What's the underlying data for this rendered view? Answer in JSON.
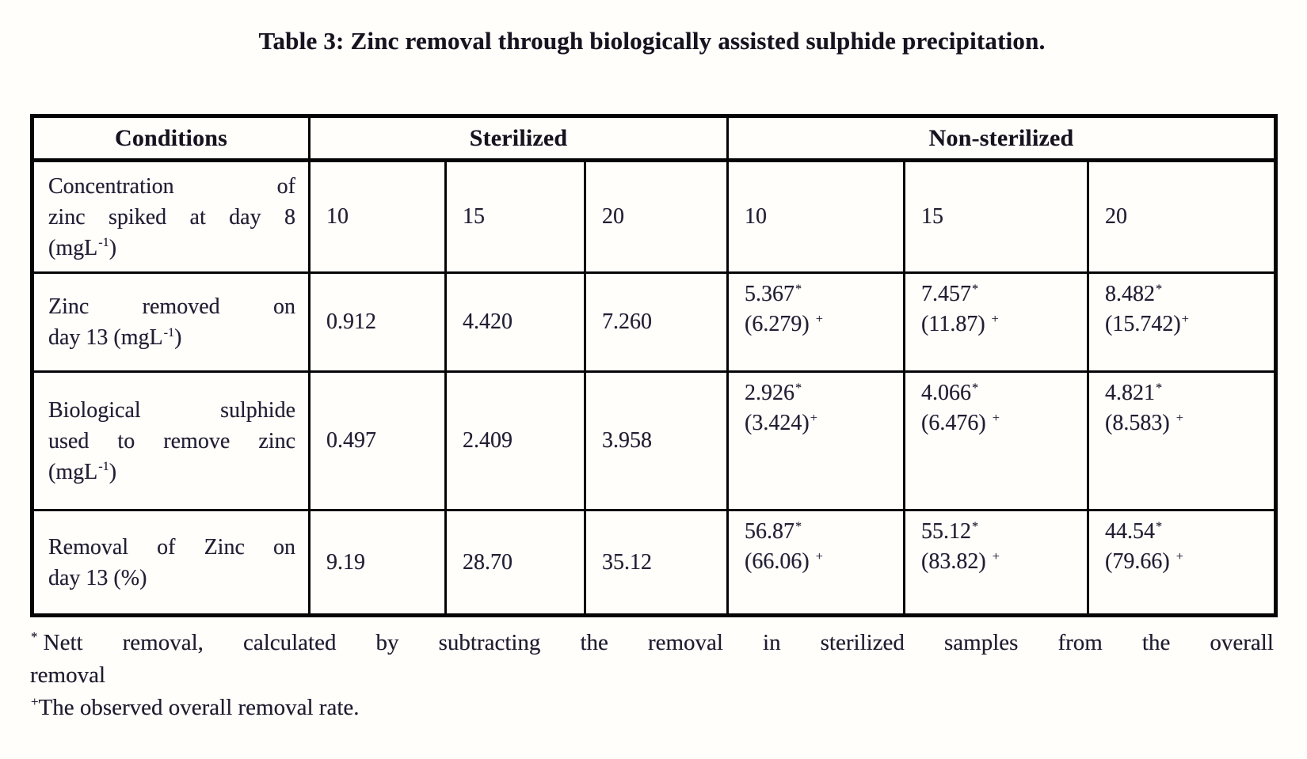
{
  "title": "Table 3: Zinc removal through biologically assisted sulphide precipitation.",
  "table": {
    "header": [
      {
        "label": "Conditions",
        "colspan": 1
      },
      {
        "label": "Sterilized",
        "colspan": 3
      },
      {
        "label": "Non-sterilized",
        "colspan": 3
      }
    ],
    "rows": [
      {
        "label_lines": [
          [
            "Concentration",
            "of"
          ],
          [
            "zinc",
            "spiked",
            "at",
            "day",
            "8"
          ],
          [
            "(mgL{-1})"
          ]
        ],
        "cells": [
          {
            "value": "10"
          },
          {
            "value": "15"
          },
          {
            "value": "20"
          },
          {
            "value": "10"
          },
          {
            "value": "15"
          },
          {
            "value": "20"
          }
        ]
      },
      {
        "label_lines": [
          [
            "Zinc",
            "removed",
            "on"
          ],
          [
            "day 13 (mgL{-1})"
          ]
        ],
        "cells": [
          {
            "value": "0.912"
          },
          {
            "value": "4.420"
          },
          {
            "value": "7.260"
          },
          {
            "value": "5.367{*}",
            "overall": "(6.279) {+}"
          },
          {
            "value": "7.457{*}",
            "overall": "(11.87) {+}"
          },
          {
            "value": "8.482{*}",
            "overall": "(15.742){+}"
          }
        ]
      },
      {
        "label_lines": [
          [
            "Biological",
            "sulphide"
          ],
          [
            "used",
            "to",
            "remove",
            "zinc"
          ],
          [
            "(mgL{-1})"
          ]
        ],
        "cells": [
          {
            "value": "0.497"
          },
          {
            "value": "2.409"
          },
          {
            "value": "3.958"
          },
          {
            "value": "2.926{*}",
            "overall": "(3.424){+}"
          },
          {
            "value": "4.066{*}",
            "overall": "(6.476) {+}"
          },
          {
            "value": "4.821{*}",
            "overall": "(8.583) {+}"
          }
        ]
      },
      {
        "label_lines": [
          [
            "Removal",
            "of",
            "Zinc",
            "on"
          ],
          [
            "day 13 (%)"
          ]
        ],
        "cells": [
          {
            "value": "9.19"
          },
          {
            "value": "28.70"
          },
          {
            "value": "35.12"
          },
          {
            "value": "56.87{*}",
            "overall": "(66.06) {+}"
          },
          {
            "value": "55.12{*}",
            "overall": "(83.82) {+}"
          },
          {
            "value": "44.54{*}",
            "overall": "(79.66) {+}"
          }
        ]
      }
    ]
  },
  "footnotes": [
    {
      "lines": [
        [
          "{*} Nett",
          "removal,",
          "calculated",
          "by",
          "subtracting",
          "the",
          "removal",
          "in",
          "sterilized",
          "samples",
          "from",
          "the",
          "overall"
        ],
        [
          "removal"
        ]
      ]
    },
    {
      "lines": [
        [
          "{+}The observed overall removal rate."
        ]
      ]
    }
  ],
  "colors": {
    "background": "#fffefb",
    "text": "#221f33",
    "heading_text": "#17141f",
    "border": "#050505"
  }
}
